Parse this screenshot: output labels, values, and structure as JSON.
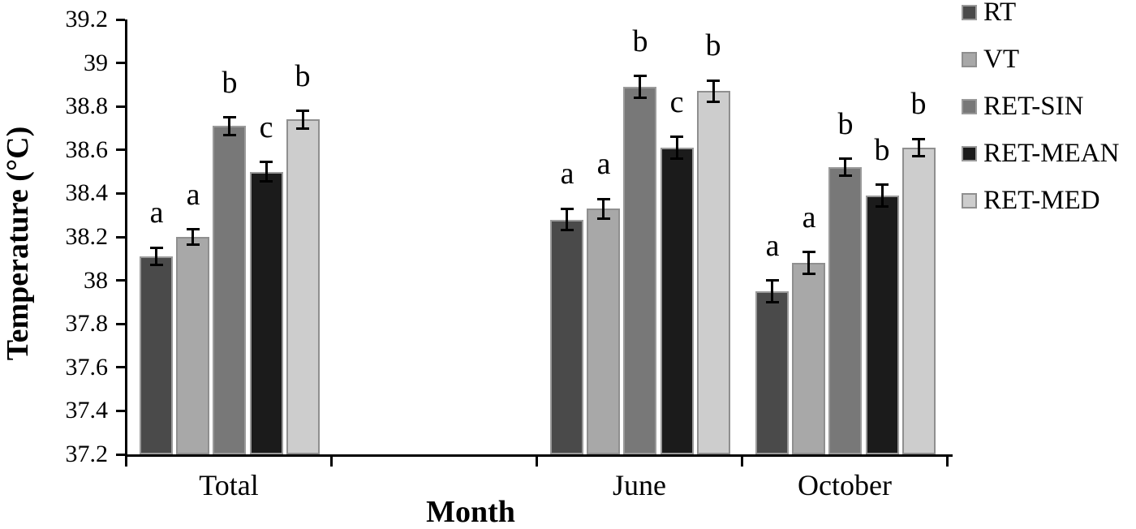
{
  "chart_data": {
    "type": "bar",
    "title": "",
    "xlabel": "Month",
    "ylabel": "Temperature (°C)",
    "ylim": [
      37.2,
      39.2
    ],
    "grid": false,
    "legend_position": "right",
    "error_bars": true,
    "yticks": [
      {
        "value": 39.2,
        "label": "39.2"
      },
      {
        "value": 39.0,
        "label": "39"
      },
      {
        "value": 38.8,
        "label": "38.8"
      },
      {
        "value": 38.6,
        "label": "38.6"
      },
      {
        "value": 38.4,
        "label": "38.4"
      },
      {
        "value": 38.2,
        "label": "38.2"
      },
      {
        "value": 38.0,
        "label": "38"
      },
      {
        "value": 37.8,
        "label": "37.8"
      },
      {
        "value": 37.6,
        "label": "37.6"
      },
      {
        "value": 37.4,
        "label": "37.4"
      },
      {
        "value": 37.2,
        "label": "37.2"
      }
    ],
    "categories": [
      "Total",
      "June",
      "October"
    ],
    "category_slots": [
      0,
      2,
      3
    ],
    "slot_count": 4,
    "axis_color": "#000000",
    "series": [
      {
        "name": "RT",
        "color": "#4a4a4a",
        "border": "#9a9a9a",
        "values": [
          38.11,
          38.28,
          37.95
        ],
        "errors": [
          0.04,
          0.05,
          0.05
        ],
        "letters": [
          "a",
          "a",
          "a"
        ]
      },
      {
        "name": "VT",
        "color": "#a8a8a8",
        "border": "#8f8f8f",
        "values": [
          38.2,
          38.33,
          38.08
        ],
        "errors": [
          0.035,
          0.045,
          0.05
        ],
        "letters": [
          "a",
          "a",
          "a"
        ]
      },
      {
        "name": "RET-SIN",
        "color": "#787878",
        "border": "#9a9a9a",
        "values": [
          38.71,
          38.89,
          38.52
        ],
        "errors": [
          0.04,
          0.05,
          0.04
        ],
        "letters": [
          "b",
          "b",
          "b"
        ]
      },
      {
        "name": "RET-MEAN",
        "color": "#1b1b1b",
        "border": "#9a9a9a",
        "values": [
          38.5,
          38.61,
          38.39
        ],
        "errors": [
          0.045,
          0.05,
          0.05
        ],
        "letters": [
          "c",
          "c",
          "b"
        ]
      },
      {
        "name": "RET-MED",
        "color": "#cdcdcd",
        "border": "#8f8f8f",
        "values": [
          38.74,
          38.87,
          38.61
        ],
        "errors": [
          0.04,
          0.05,
          0.04
        ],
        "letters": [
          "b",
          "b",
          "b"
        ]
      }
    ]
  }
}
